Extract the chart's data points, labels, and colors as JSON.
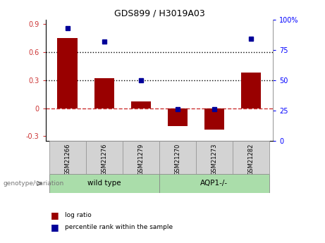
{
  "title": "GDS899 / H3019A03",
  "samples": [
    "GSM21266",
    "GSM21276",
    "GSM21279",
    "GSM21270",
    "GSM21273",
    "GSM21282"
  ],
  "log_ratio": [
    0.75,
    0.32,
    0.07,
    -0.19,
    -0.23,
    0.38
  ],
  "percentile_rank": [
    93,
    82,
    50,
    26,
    26,
    84
  ],
  "group_label_text": "genotype/variation",
  "ylim_left": [
    -0.35,
    0.95
  ],
  "ylim_right": [
    0,
    100
  ],
  "yticks_left": [
    -0.3,
    0.0,
    0.3,
    0.6,
    0.9
  ],
  "yticks_right": [
    0,
    25,
    50,
    75,
    100
  ],
  "hlines": [
    0.3,
    0.6
  ],
  "bar_color": "#990000",
  "dot_color": "#000099",
  "zero_line_color": "#cc3333",
  "legend_bar_label": "log ratio",
  "legend_dot_label": "percentile rank within the sample",
  "group_ranges": [
    {
      "start": 0,
      "end": 2,
      "label": "wild type",
      "color": "#aaddaa"
    },
    {
      "start": 3,
      "end": 5,
      "label": "AQP1-/-",
      "color": "#aaddaa"
    }
  ]
}
